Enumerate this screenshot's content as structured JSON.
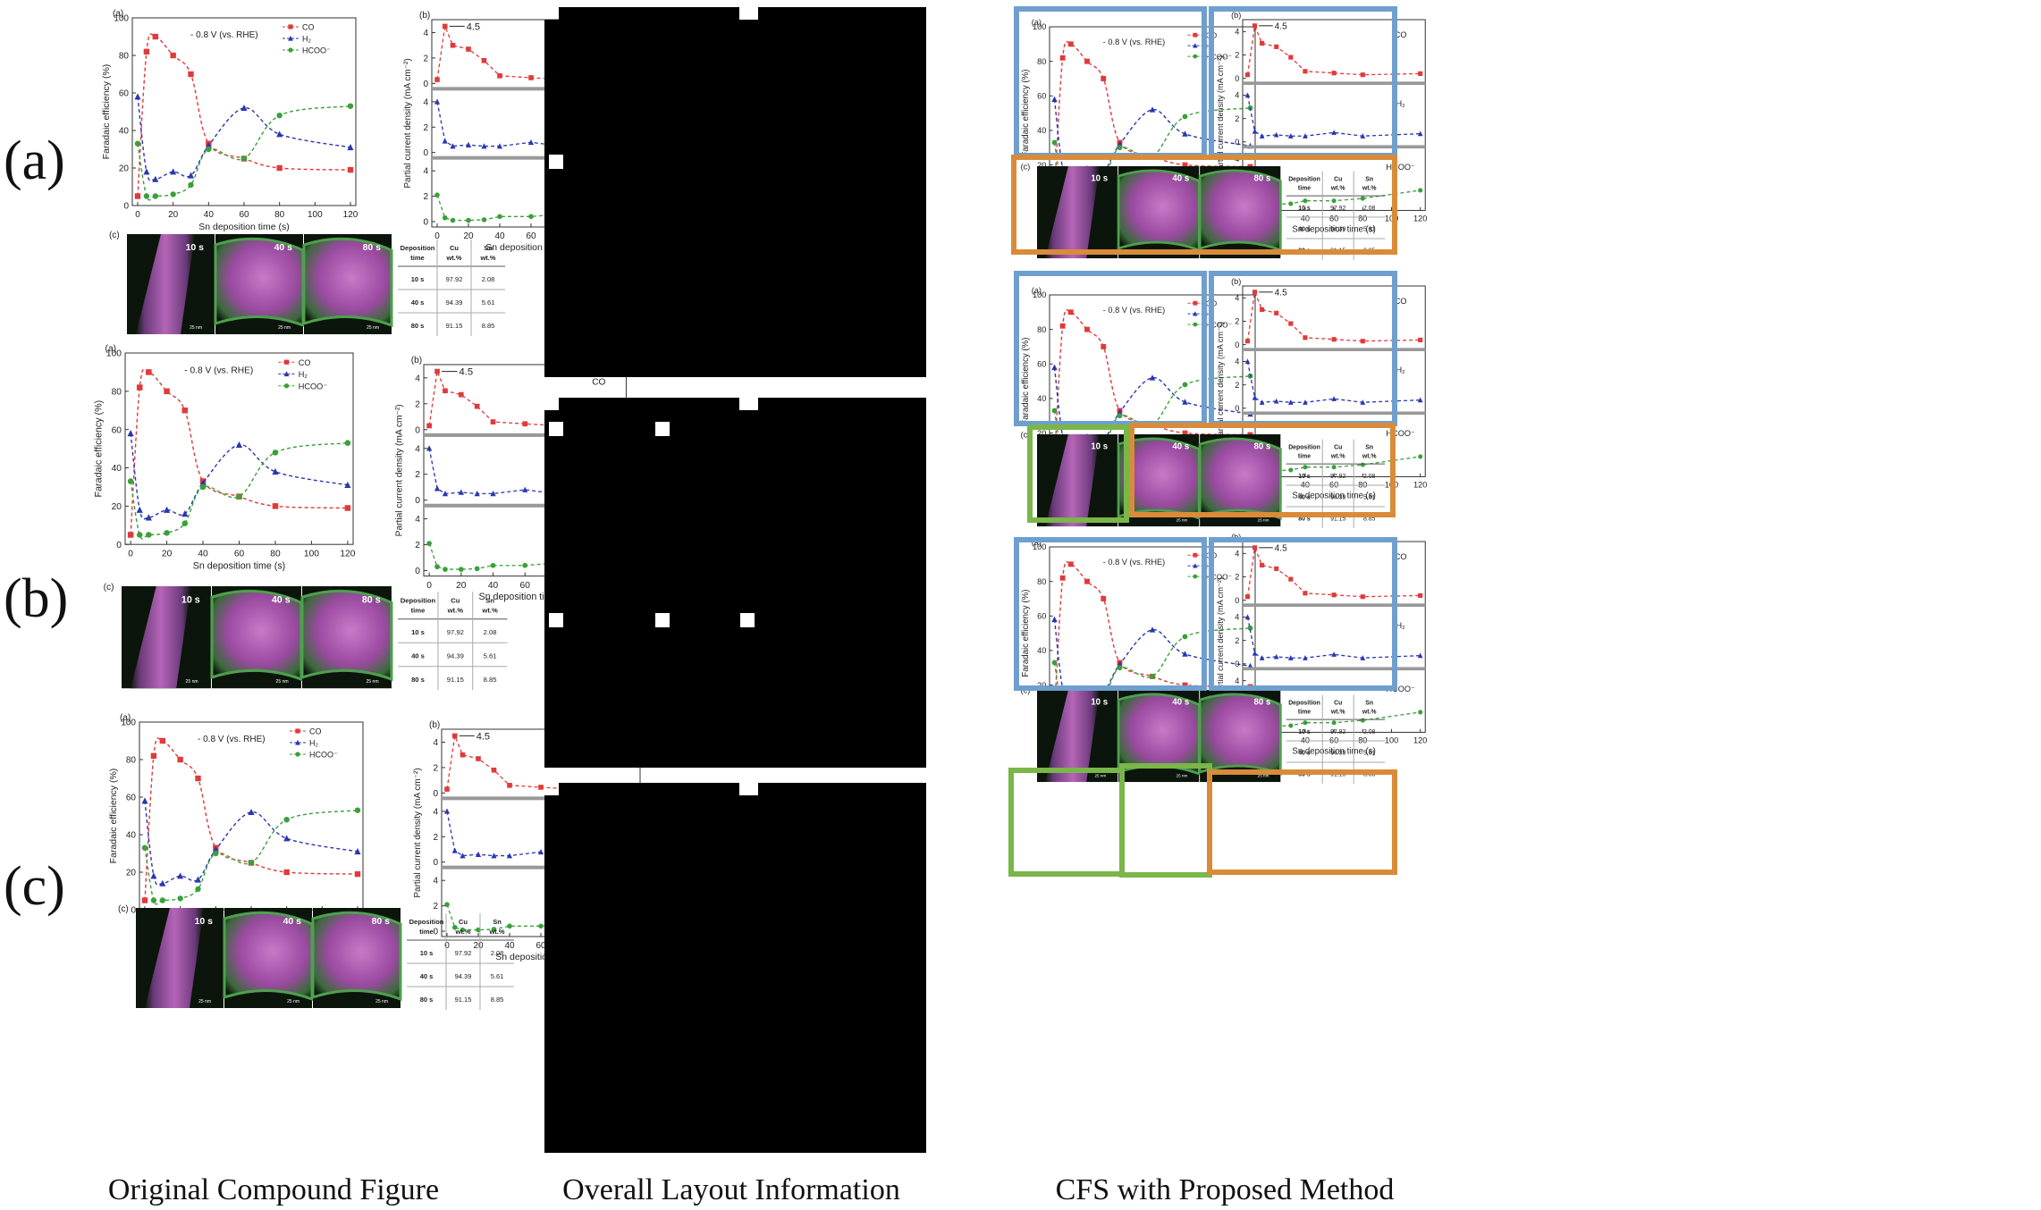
{
  "row_labels": [
    "(a)",
    "(b)",
    "(c)"
  ],
  "captions": {
    "left": "Original Compound Figure",
    "middle": "Overall Layout Information",
    "right": "CFS with Proposed Method"
  },
  "panel_letters": {
    "a": "(a)",
    "b": "(b)",
    "c": "(c)"
  },
  "fe_chart": {
    "annotation": "- 0.8 V (vs. RHE)",
    "xlabel": "Sn deposition time (s)",
    "ylabel": "Faradaic efficiency (%)",
    "xticks": [
      "0",
      "20",
      "40",
      "60",
      "80",
      "100",
      "120"
    ],
    "yticks": [
      "0",
      "20",
      "40",
      "60",
      "80",
      "100"
    ],
    "legend": [
      "CO",
      "H₂",
      "HCOO⁻"
    ]
  },
  "pcd_chart": {
    "ylabel": "Partial current density (mA cm⁻²)",
    "xlabel": "Sn deposition time (s)",
    "xticks": [
      "0",
      "20",
      "40",
      "60",
      "80",
      "100",
      "120"
    ],
    "peak_label": "4.5",
    "sub_labels": [
      "CO",
      "H₂",
      "HCOO⁻"
    ],
    "yticks_top": [
      "0",
      "2",
      "4"
    ],
    "yticks_mid": [
      "0",
      "2",
      "4"
    ],
    "yticks_bot": [
      "0",
      "2",
      "4"
    ]
  },
  "micrographs": {
    "labels": [
      "10 s",
      "40 s",
      "80 s"
    ],
    "scale": "25 nm"
  },
  "table": {
    "headers": [
      "Deposition time",
      "Cu wt.%",
      "Sn wt.%"
    ],
    "rows": [
      [
        "10 s",
        "97.92",
        "2.08"
      ],
      [
        "40 s",
        "94.39",
        "5.61"
      ],
      [
        "80 s",
        "91.15",
        "8.85"
      ]
    ]
  },
  "colors": {
    "co": "#e03a3a",
    "h2": "#2a36b0",
    "hcoo": "#3aa03a",
    "box_blue": "#6f9fcf",
    "box_orange": "#d98b3a",
    "box_green": "#7ab648",
    "layout_black": "#000000"
  },
  "chart_data": [
    {
      "type": "line",
      "title": "",
      "xlabel": "Sn deposition time (s)",
      "ylabel": "Faradaic efficiency (%)",
      "xlim": [
        0,
        120
      ],
      "ylim": [
        0,
        100
      ],
      "series": [
        {
          "name": "CO",
          "x": [
            0,
            5,
            10,
            20,
            30,
            40,
            60,
            80,
            120
          ],
          "y": [
            5,
            82,
            90,
            80,
            70,
            33,
            25,
            20,
            19
          ]
        },
        {
          "name": "H₂",
          "x": [
            0,
            5,
            10,
            20,
            30,
            40,
            60,
            80,
            120
          ],
          "y": [
            58,
            18,
            14,
            18,
            16,
            32,
            52,
            38,
            31
          ]
        },
        {
          "name": "HCOO⁻",
          "x": [
            0,
            5,
            10,
            20,
            30,
            40,
            60,
            80,
            120
          ],
          "y": [
            33,
            5,
            5,
            6,
            11,
            30,
            25,
            48,
            53
          ]
        }
      ]
    },
    {
      "type": "line",
      "title": "",
      "xlabel": "Sn deposition time (s)",
      "ylabel": "Partial current density (mA cm⁻²)",
      "xlim": [
        0,
        120
      ],
      "series": [
        {
          "name": "CO",
          "x": [
            0,
            5,
            10,
            20,
            30,
            40,
            60,
            80,
            120
          ],
          "y": [
            0.3,
            4.5,
            3.0,
            2.7,
            1.8,
            0.6,
            0.45,
            0.3,
            0.4
          ]
        },
        {
          "name": "H₂",
          "x": [
            0,
            5,
            10,
            20,
            30,
            40,
            60,
            80,
            120
          ],
          "y": [
            4.0,
            0.9,
            0.5,
            0.6,
            0.5,
            0.5,
            0.8,
            0.5,
            0.7
          ]
        },
        {
          "name": "HCOO⁻",
          "x": [
            0,
            5,
            10,
            20,
            30,
            40,
            60,
            80,
            120
          ],
          "y": [
            2.1,
            0.3,
            0.1,
            0.1,
            0.15,
            0.4,
            0.4,
            0.6,
            1.3
          ]
        }
      ]
    }
  ]
}
